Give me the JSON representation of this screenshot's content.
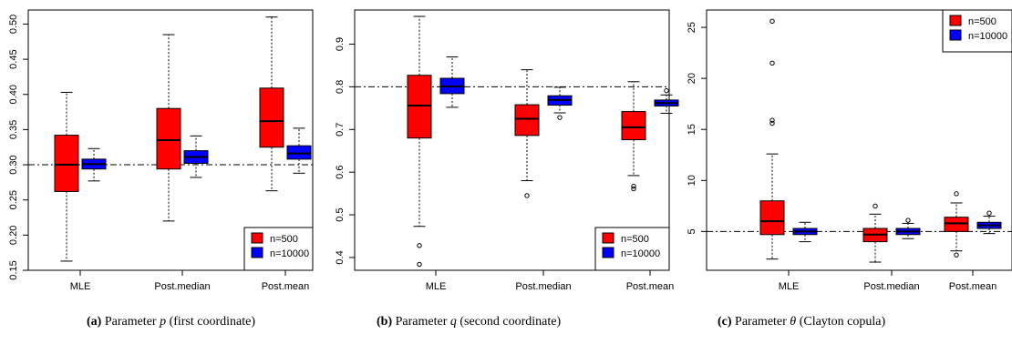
{
  "captions": [
    {
      "tag": "(a)",
      "prefix": "Parameter ",
      "sym": "p",
      "suffix": " (first coordinate)"
    },
    {
      "tag": "(b)",
      "prefix": "Parameter ",
      "sym": "q",
      "suffix": " (second coordinate)"
    },
    {
      "tag": "(c)",
      "prefix": "Parameter ",
      "sym": "θ",
      "suffix": " (Clayton copula)"
    }
  ],
  "colors": {
    "n500": "#ff0000",
    "n10000": "#0000ff",
    "line": "#000000"
  },
  "chart_data": [
    {
      "type": "boxplot",
      "categories": [
        "MLE",
        "Post.median",
        "Post.mean"
      ],
      "series": [
        {
          "name": "n=500",
          "color": "#ff0000",
          "boxes": [
            {
              "min": 0.163,
              "q1": 0.262,
              "median": 0.3,
              "q3": 0.342,
              "max": 0.403,
              "outliers": []
            },
            {
              "min": 0.22,
              "q1": 0.294,
              "median": 0.335,
              "q3": 0.38,
              "max": 0.485,
              "outliers": []
            },
            {
              "min": 0.263,
              "q1": 0.325,
              "median": 0.362,
              "q3": 0.409,
              "max": 0.51,
              "outliers": []
            }
          ]
        },
        {
          "name": "n=10000",
          "color": "#0000ff",
          "boxes": [
            {
              "min": 0.277,
              "q1": 0.294,
              "median": 0.301,
              "q3": 0.308,
              "max": 0.323,
              "outliers": []
            },
            {
              "min": 0.282,
              "q1": 0.302,
              "median": 0.311,
              "q3": 0.32,
              "max": 0.341,
              "outliers": []
            },
            {
              "min": 0.288,
              "q1": 0.308,
              "median": 0.316,
              "q3": 0.327,
              "max": 0.352,
              "outliers": []
            }
          ]
        }
      ],
      "reference_line": 0.3,
      "ylim": [
        0.15,
        0.52
      ],
      "yticks": [
        0.15,
        0.2,
        0.25,
        0.3,
        0.35,
        0.4,
        0.45,
        0.5
      ],
      "ytick_labels": [
        "0.15",
        "0.20",
        "0.25",
        "0.30",
        "0.35",
        "0.40",
        "0.45",
        "0.50"
      ],
      "legend": "bottom-right"
    },
    {
      "type": "boxplot",
      "categories": [
        "MLE",
        "Post.median",
        "Post.mean"
      ],
      "series": [
        {
          "name": "n=500",
          "color": "#ff0000",
          "boxes": [
            {
              "min": 0.473,
              "q1": 0.68,
              "median": 0.756,
              "q3": 0.827,
              "max": 0.965,
              "outliers": [
                0.428,
                0.384
              ]
            },
            {
              "min": 0.58,
              "q1": 0.686,
              "median": 0.725,
              "q3": 0.758,
              "max": 0.84,
              "outliers": [
                0.545
              ]
            },
            {
              "min": 0.592,
              "q1": 0.676,
              "median": 0.705,
              "q3": 0.742,
              "max": 0.812,
              "outliers": [
                0.567,
                0.561
              ]
            }
          ]
        },
        {
          "name": "n=10000",
          "color": "#0000ff",
          "boxes": [
            {
              "min": 0.752,
              "q1": 0.784,
              "median": 0.801,
              "q3": 0.82,
              "max": 0.87,
              "outliers": []
            },
            {
              "min": 0.739,
              "q1": 0.757,
              "median": 0.769,
              "q3": 0.779,
              "max": 0.799,
              "outliers": [
                0.728
              ]
            },
            {
              "min": 0.738,
              "q1": 0.755,
              "median": 0.762,
              "q3": 0.769,
              "max": 0.781,
              "outliers": [
                0.791
              ]
            }
          ]
        }
      ],
      "reference_line": 0.8,
      "ylim": [
        0.37,
        0.98
      ],
      "yticks": [
        0.4,
        0.5,
        0.6,
        0.7,
        0.8,
        0.9
      ],
      "ytick_labels": [
        "0.4",
        "0.5",
        "0.6",
        "0.7",
        "0.8",
        "0.9"
      ],
      "legend": "bottom-right"
    },
    {
      "type": "boxplot",
      "categories": [
        "MLE",
        "Post.median",
        "Post.mean"
      ],
      "series": [
        {
          "name": "n=500",
          "color": "#ff0000",
          "boxes": [
            {
              "min": 2.3,
              "q1": 4.7,
              "median": 6.0,
              "q3": 8.0,
              "max": 12.6,
              "outliers": [
                15.6,
                15.9,
                21.5,
                25.6
              ]
            },
            {
              "min": 2.0,
              "q1": 4.0,
              "median": 4.7,
              "q3": 5.3,
              "max": 6.7,
              "outliers": [
                7.5
              ]
            },
            {
              "min": 3.1,
              "q1": 5.0,
              "median": 5.8,
              "q3": 6.4,
              "max": 7.8,
              "outliers": [
                2.7,
                8.7
              ]
            }
          ]
        },
        {
          "name": "n=10000",
          "color": "#0000ff",
          "boxes": [
            {
              "min": 4.0,
              "q1": 4.7,
              "median": 5.0,
              "q3": 5.3,
              "max": 5.9,
              "outliers": []
            },
            {
              "min": 4.3,
              "q1": 4.7,
              "median": 5.0,
              "q3": 5.3,
              "max": 5.8,
              "outliers": [
                6.1
              ]
            },
            {
              "min": 4.8,
              "q1": 5.3,
              "median": 5.6,
              "q3": 5.9,
              "max": 6.5,
              "outliers": [
                6.8
              ]
            }
          ]
        }
      ],
      "reference_line": 5,
      "ylim": [
        1.2,
        26.7
      ],
      "yticks": [
        5,
        10,
        15,
        20,
        25
      ],
      "ytick_labels": [
        "5",
        "10",
        "15",
        "20",
        "25"
      ],
      "legend": "top-right"
    }
  ]
}
